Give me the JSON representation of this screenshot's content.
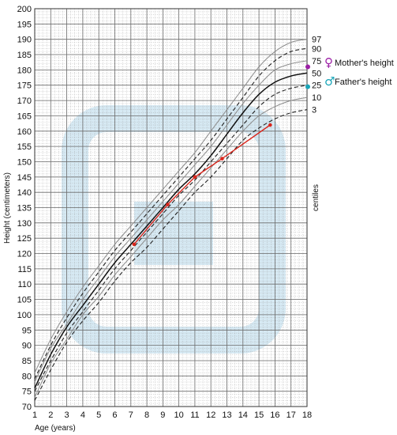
{
  "chart_data": {
    "type": "line",
    "xlabel": "Age (years)",
    "ylabel": "Height (centimeters)",
    "right_label": "centiles",
    "xlim": [
      1,
      18
    ],
    "ylim": [
      70,
      200
    ],
    "x_ticks": [
      1,
      2,
      3,
      4,
      5,
      6,
      7,
      8,
      9,
      10,
      11,
      12,
      13,
      14,
      15,
      16,
      17,
      18
    ],
    "y_ticks": [
      70,
      75,
      80,
      85,
      90,
      95,
      100,
      105,
      110,
      115,
      120,
      125,
      130,
      135,
      140,
      145,
      150,
      155,
      160,
      165,
      170,
      175,
      180,
      185,
      190,
      195,
      200
    ],
    "grid": true,
    "centile_x": [
      1,
      2,
      3,
      4,
      5,
      6,
      7,
      8,
      9,
      10,
      11,
      12,
      13,
      14,
      15,
      16,
      17,
      18
    ],
    "centiles": [
      {
        "name": "97",
        "style": "solid-gray",
        "values": [
          81,
          92,
          101,
          109,
          116,
          123,
          129,
          135,
          141,
          147,
          153,
          160,
          167,
          174,
          181,
          186,
          189,
          190
        ]
      },
      {
        "name": "90",
        "style": "dashed",
        "values": [
          79,
          90,
          99,
          107,
          114,
          121,
          127,
          133,
          139,
          145,
          151,
          157,
          164,
          171,
          178,
          183,
          186,
          187
        ]
      },
      {
        "name": "75",
        "style": "solid-gray",
        "values": [
          78,
          89,
          97,
          105,
          112,
          119,
          125,
          131,
          137,
          143,
          149,
          155,
          162,
          169,
          175,
          180,
          182,
          183
        ]
      },
      {
        "name": "50",
        "style": "solid-black",
        "values": [
          76,
          87,
          96,
          103,
          110,
          117,
          123,
          129,
          135,
          141,
          146,
          152,
          159,
          166,
          172,
          176,
          178,
          179
        ]
      },
      {
        "name": "25",
        "style": "dashed",
        "values": [
          75,
          85,
          94,
          101,
          108,
          115,
          121,
          127,
          133,
          139,
          144,
          150,
          156,
          162,
          168,
          172,
          174,
          175
        ]
      },
      {
        "name": "10",
        "style": "solid-gray",
        "values": [
          73,
          84,
          92,
          100,
          106,
          113,
          119,
          125,
          131,
          136,
          142,
          148,
          154,
          160,
          165,
          168,
          170,
          171
        ]
      },
      {
        "name": "3",
        "style": "dashed",
        "values": [
          72,
          82,
          91,
          98,
          104,
          111,
          117,
          122,
          128,
          134,
          140,
          145,
          151,
          157,
          161,
          164,
          166,
          167
        ]
      }
    ],
    "patient": {
      "color": "#d9261c",
      "x": [
        7.2,
        9.3,
        11.0,
        12.7,
        15.7
      ],
      "y": [
        123,
        136,
        145,
        151,
        162
      ]
    },
    "legend": [
      {
        "label": "Mother's height",
        "symbol": "♀",
        "color": "#9b1fa5",
        "value": 181
      },
      {
        "label": "Father's height",
        "symbol": "♂",
        "color": "#1aa5b8",
        "value": 174.5
      }
    ]
  }
}
